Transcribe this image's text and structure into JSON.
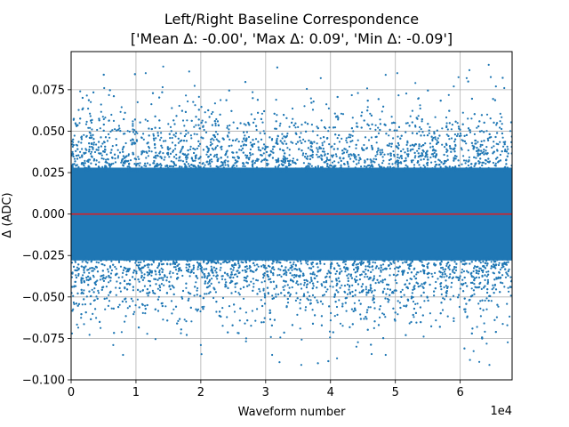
{
  "chart_data": {
    "type": "scatter",
    "title": "Left/Right Baseline Correspondence",
    "subtitle": "['Mean Δ: -0.00', 'Max Δ: 0.09', 'Min Δ: -0.09']",
    "xlabel": "Waveform number",
    "ylabel": "Δ (ADC)",
    "x_offset_label": "1e4",
    "xlim": [
      0,
      68000
    ],
    "ylim": [
      -0.1,
      0.098
    ],
    "x_ticks": [
      0,
      10000,
      20000,
      30000,
      40000,
      50000,
      60000
    ],
    "x_tick_labels": [
      "0",
      "1",
      "2",
      "3",
      "4",
      "5",
      "6"
    ],
    "y_ticks": [
      -0.1,
      -0.075,
      -0.05,
      -0.025,
      0.0,
      0.025,
      0.05,
      0.075
    ],
    "y_tick_labels": [
      "−0.100",
      "−0.075",
      "−0.050",
      "−0.025",
      "0.000",
      "0.025",
      "0.050",
      "0.075"
    ],
    "grid": true,
    "reference_line": {
      "y": 0.0,
      "color": "#e31a1c"
    },
    "series": [
      {
        "color": "#1f77b4",
        "n_points": 68000,
        "mean": 0.0,
        "std": 0.021,
        "max": 0.09,
        "min": -0.09
      }
    ],
    "notable_points": [
      {
        "x": 1400,
        "y": 0.074
      },
      {
        "x": 5100,
        "y": 0.076
      },
      {
        "x": 11500,
        "y": 0.085
      },
      {
        "x": 14200,
        "y": 0.089
      },
      {
        "x": 18200,
        "y": 0.086
      },
      {
        "x": 38500,
        "y": 0.082
      },
      {
        "x": 48500,
        "y": 0.084
      },
      {
        "x": 50300,
        "y": 0.085
      },
      {
        "x": 59000,
        "y": 0.077
      },
      {
        "x": 61000,
        "y": 0.082
      },
      {
        "x": 64400,
        "y": 0.09
      },
      {
        "x": 65500,
        "y": 0.077
      },
      {
        "x": 66800,
        "y": 0.076
      },
      {
        "x": 8000,
        "y": -0.085
      },
      {
        "x": 20000,
        "y": -0.079
      },
      {
        "x": 31000,
        "y": -0.085
      },
      {
        "x": 35500,
        "y": -0.091
      },
      {
        "x": 48500,
        "y": -0.085
      },
      {
        "x": 61500,
        "y": -0.088
      },
      {
        "x": 64500,
        "y": -0.091
      },
      {
        "x": 6500,
        "y": -0.079
      },
      {
        "x": 44000,
        "y": -0.08
      },
      {
        "x": 27000,
        "y": -0.075
      }
    ]
  }
}
